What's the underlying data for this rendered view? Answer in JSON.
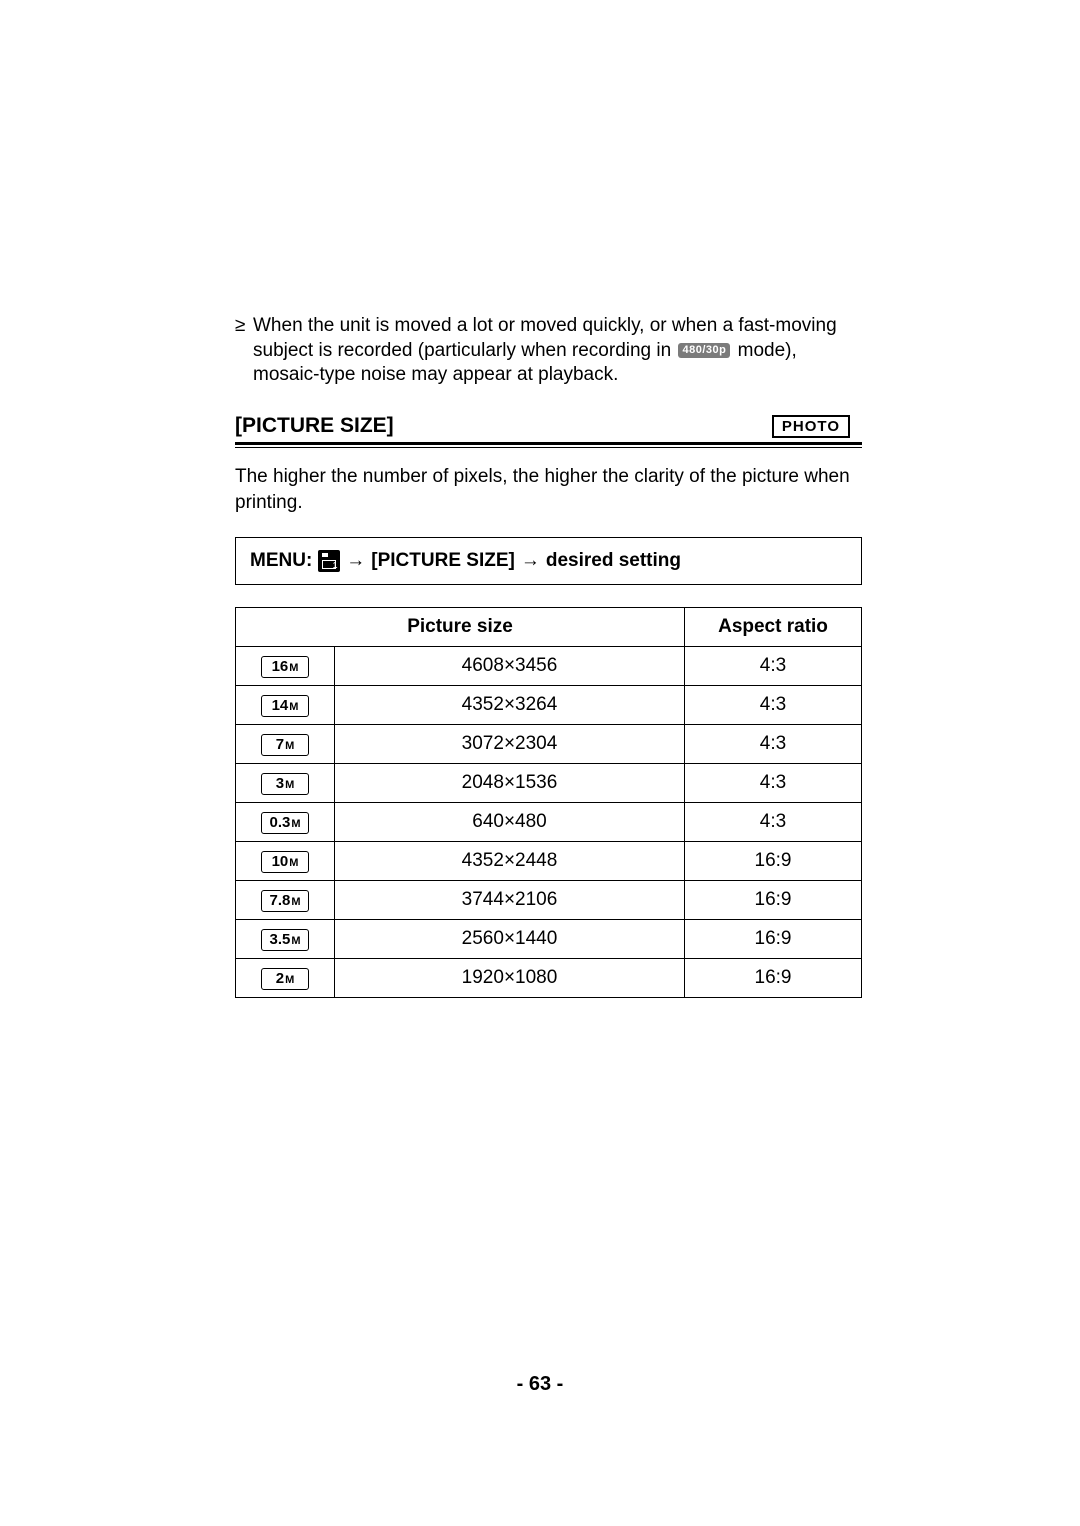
{
  "bullet": {
    "text_before_badge": "When the unit is moved a lot or moved quickly, or when a fast-moving subject is recorded (particularly when recording in ",
    "mode_badge": "480/30p",
    "text_after_badge": " mode), mosaic-type noise may appear at playback."
  },
  "section": {
    "title": "[PICTURE SIZE]",
    "photo_badge": "PHOTO",
    "description": "The higher the number of pixels, the higher the clarity of the picture when printing."
  },
  "menu_path": {
    "label": "MENU",
    "icon_text": "1",
    "arrow": "→",
    "step1": "[PICTURE SIZE]",
    "step2": "desired setting"
  },
  "table": {
    "headers": {
      "picture_size": "Picture size",
      "aspect_ratio": "Aspect ratio"
    },
    "rows": [
      {
        "badge": "16",
        "badge_suffix": "M",
        "resolution": "4608×3456",
        "aspect": "4:3"
      },
      {
        "badge": "14",
        "badge_suffix": "M",
        "resolution": "4352×3264",
        "aspect": "4:3"
      },
      {
        "badge": "7",
        "badge_suffix": "M",
        "resolution": "3072×2304",
        "aspect": "4:3"
      },
      {
        "badge": "3",
        "badge_suffix": "M",
        "resolution": "2048×1536",
        "aspect": "4:3"
      },
      {
        "badge": "0.3",
        "badge_suffix": "M",
        "resolution": "640×480",
        "aspect": "4:3"
      },
      {
        "badge": "10",
        "badge_suffix": "M",
        "resolution": "4352×2448",
        "aspect": "16:9"
      },
      {
        "badge": "7.8",
        "badge_suffix": "M",
        "resolution": "3744×2106",
        "aspect": "16:9"
      },
      {
        "badge": "3.5",
        "badge_suffix": "M",
        "resolution": "2560×1440",
        "aspect": "16:9"
      },
      {
        "badge": "2",
        "badge_suffix": "M",
        "resolution": "1920×1080",
        "aspect": "16:9"
      }
    ]
  },
  "page_number": "- 63 -"
}
